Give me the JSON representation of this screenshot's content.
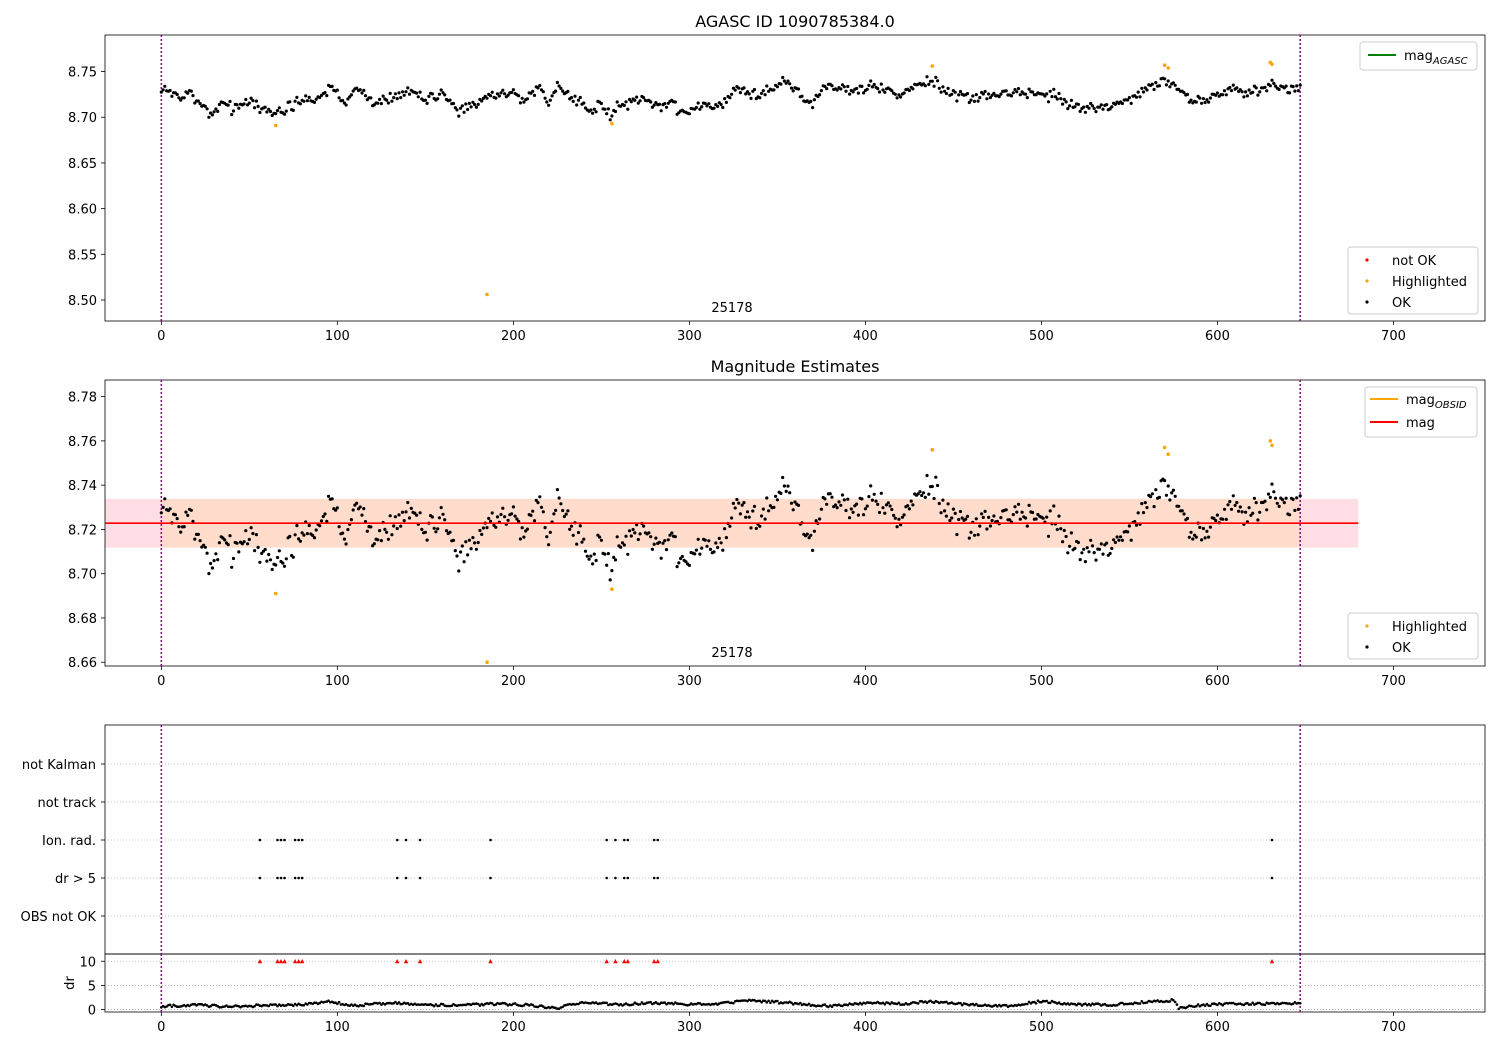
{
  "figure": {
    "panels": {
      "top": {
        "title": "AGASC ID 1090785384.0",
        "obsid_label": "25178"
      },
      "middle": {
        "title": "Magnitude Estimates",
        "obsid_label": "25178"
      },
      "bottom": {
        "title": ""
      }
    }
  },
  "chart_data": [
    {
      "type": "scatter",
      "title": "AGASC ID 1090785384.0",
      "xlabel": "",
      "ylabel": "",
      "xlim": [
        -32,
        752
      ],
      "ylim": [
        8.477,
        8.79
      ],
      "xticks": [
        0,
        100,
        200,
        300,
        400,
        500,
        600,
        700
      ],
      "yticks": [
        8.5,
        8.55,
        8.6,
        8.65,
        8.7,
        8.75
      ],
      "ytick_labels": [
        "8.50",
        "8.55",
        "8.60",
        "8.65",
        "8.70",
        "8.75"
      ],
      "vlines": [
        0,
        647
      ],
      "vline_color": "#8b008b",
      "annotation": {
        "text": "25178",
        "x": 325
      },
      "legend": [
        {
          "label": "mag",
          "sub": "AGASC",
          "kind": "line",
          "color": "#008000",
          "placement": "top-right"
        },
        {
          "label": "not OK",
          "kind": "point",
          "color": "#ff0000",
          "placement": "bottom-right"
        },
        {
          "label": "Highlighted",
          "kind": "point",
          "color": "#ffa500",
          "placement": "bottom-right"
        },
        {
          "label": "OK",
          "kind": "point",
          "color": "#000000",
          "placement": "bottom-right"
        }
      ],
      "series": [
        {
          "name": "OK",
          "color": "#000000",
          "source": "mag_series",
          "step": 1
        },
        {
          "name": "Highlighted",
          "color": "#ffa500",
          "x": [
            65,
            185,
            256,
            438,
            570,
            572,
            630,
            631
          ],
          "y": [
            8.691,
            8.506,
            8.693,
            8.756,
            8.757,
            8.754,
            8.76,
            8.758
          ]
        }
      ]
    },
    {
      "type": "scatter",
      "title": "Magnitude Estimates",
      "xlabel": "",
      "ylabel": "",
      "xlim": [
        -32,
        752
      ],
      "ylim": [
        8.6583,
        8.7875
      ],
      "xticks": [
        0,
        100,
        200,
        300,
        400,
        500,
        600,
        700
      ],
      "yticks": [
        8.66,
        8.68,
        8.7,
        8.72,
        8.74,
        8.76,
        8.78
      ],
      "ytick_labels": [
        "8.66",
        "8.68",
        "8.70",
        "8.72",
        "8.74",
        "8.76",
        "8.78"
      ],
      "vlines": [
        0,
        647
      ],
      "vline_color": "#8b008b",
      "annotation": {
        "text": "25178",
        "x": 325
      },
      "mag_line": {
        "y": 8.7228,
        "x0": -32,
        "x1": 680,
        "color": "#ff0000"
      },
      "bands": [
        {
          "x0": -32,
          "x1": 680,
          "y0": 8.7118,
          "y1": 8.7338,
          "color": "#ffdde4"
        },
        {
          "x0": 0,
          "x1": 647,
          "y0": 8.7118,
          "y1": 8.7338,
          "color": "#ffdccb"
        }
      ],
      "legend": [
        {
          "label": "mag",
          "sub": "OBSID",
          "kind": "line",
          "color": "#ffa500",
          "placement": "top-right"
        },
        {
          "label": "mag",
          "kind": "line",
          "color": "#ff0000",
          "placement": "top-right"
        },
        {
          "label": "Highlighted",
          "kind": "point",
          "color": "#ffa500",
          "placement": "bottom-right"
        },
        {
          "label": "OK",
          "kind": "point",
          "color": "#000000",
          "placement": "bottom-right"
        }
      ],
      "series": [
        {
          "name": "OK",
          "color": "#000000",
          "source": "mag_series",
          "step": 1
        },
        {
          "name": "Highlighted",
          "color": "#ffa500",
          "x": [
            65,
            185,
            256,
            438,
            570,
            572,
            630,
            631
          ],
          "y": [
            8.691,
            8.66,
            8.693,
            8.756,
            8.757,
            8.754,
            8.76,
            8.758
          ]
        }
      ]
    },
    {
      "type": "scatter",
      "title": "",
      "xlabel": "",
      "ylabel": "dr",
      "xlim": [
        -32,
        752
      ],
      "xticks": [
        0,
        100,
        200,
        300,
        400,
        500,
        600,
        700
      ],
      "vlines": [
        0,
        647
      ],
      "vline_color": "#8b008b",
      "flag_rows": [
        "not Kalman",
        "not track",
        "Ion. rad.",
        "dr > 5",
        "OBS not OK"
      ],
      "flag_events": {
        "Ion. rad.": [
          56,
          66,
          68,
          70,
          76,
          78,
          80,
          134,
          139,
          147,
          187,
          253,
          258,
          263,
          265,
          280,
          282,
          631
        ],
        "dr > 5": [
          56,
          66,
          68,
          70,
          76,
          78,
          80,
          134,
          139,
          147,
          187,
          253,
          258,
          263,
          265,
          280,
          282,
          631
        ]
      },
      "dr_ylim": [
        -0.5,
        11.5
      ],
      "dr_yticks": [
        0,
        5,
        10
      ],
      "dr_clip_markers": {
        "y": 10,
        "color": "#ff0000",
        "x": [
          56,
          66,
          68,
          70,
          76,
          78,
          80,
          134,
          139,
          147,
          187,
          253,
          258,
          263,
          265,
          280,
          282,
          631
        ]
      },
      "dr_anchor_x": [
        0,
        20,
        40,
        60,
        80,
        95,
        110,
        130,
        150,
        170,
        190,
        210,
        225,
        240,
        260,
        280,
        300,
        315,
        335,
        360,
        380,
        400,
        420,
        440,
        460,
        480,
        500,
        520,
        540,
        560,
        575,
        578,
        590,
        610,
        630,
        645
      ],
      "dr_anchor_y": [
        0.7,
        0.9,
        0.6,
        0.9,
        1.0,
        1.6,
        0.8,
        1.4,
        1.0,
        0.9,
        1.2,
        0.9,
        0.3,
        1.6,
        1.0,
        1.4,
        1.1,
        1.2,
        1.9,
        1.3,
        0.7,
        1.4,
        1.2,
        1.7,
        1.0,
        0.7,
        1.7,
        1.1,
        1.0,
        1.6,
        1.9,
        0.3,
        0.9,
        1.2,
        1.2,
        1.3
      ]
    }
  ],
  "mag_series": {
    "x_start": 0,
    "x_end": 647,
    "anchor_x": [
      0,
      5,
      10,
      15,
      20,
      25,
      30,
      35,
      40,
      45,
      50,
      55,
      60,
      65,
      70,
      75,
      80,
      85,
      90,
      95,
      100,
      105,
      110,
      115,
      120,
      125,
      130,
      135,
      140,
      145,
      150,
      155,
      160,
      165,
      170,
      175,
      180,
      185,
      190,
      195,
      200,
      205,
      210,
      215,
      220,
      225,
      230,
      235,
      240,
      245,
      250,
      255,
      260,
      265,
      270,
      275,
      280,
      285,
      290,
      295,
      300,
      305,
      310,
      315,
      320,
      325,
      330,
      335,
      340,
      345,
      350,
      355,
      360,
      365,
      370,
      375,
      380,
      385,
      390,
      395,
      400,
      405,
      410,
      415,
      420,
      425,
      430,
      435,
      440,
      445,
      450,
      455,
      460,
      465,
      470,
      475,
      480,
      485,
      490,
      495,
      500,
      505,
      510,
      515,
      520,
      525,
      530,
      535,
      540,
      545,
      550,
      555,
      560,
      565,
      570,
      575,
      580,
      585,
      590,
      595,
      600,
      605,
      610,
      615,
      620,
      625,
      630,
      635,
      640,
      645
    ],
    "anchor_y": [
      8.728,
      8.728,
      8.722,
      8.727,
      8.72,
      8.706,
      8.702,
      8.718,
      8.71,
      8.713,
      8.717,
      8.71,
      8.707,
      8.703,
      8.708,
      8.714,
      8.718,
      8.716,
      8.724,
      8.732,
      8.728,
      8.714,
      8.73,
      8.726,
      8.715,
      8.72,
      8.722,
      8.724,
      8.726,
      8.728,
      8.72,
      8.724,
      8.725,
      8.715,
      8.708,
      8.716,
      8.714,
      8.722,
      8.723,
      8.724,
      8.727,
      8.716,
      8.726,
      8.733,
      8.71,
      8.735,
      8.728,
      8.717,
      8.713,
      8.71,
      8.712,
      8.702,
      8.712,
      8.716,
      8.72,
      8.722,
      8.712,
      8.713,
      8.717,
      8.704,
      8.706,
      8.714,
      8.716,
      8.71,
      8.718,
      8.73,
      8.735,
      8.727,
      8.72,
      8.73,
      8.735,
      8.74,
      8.733,
      8.72,
      8.714,
      8.728,
      8.735,
      8.734,
      8.73,
      8.73,
      8.734,
      8.733,
      8.73,
      8.726,
      8.724,
      8.732,
      8.735,
      8.738,
      8.741,
      8.731,
      8.722,
      8.725,
      8.721,
      8.722,
      8.724,
      8.727,
      8.728,
      8.725,
      8.73,
      8.727,
      8.724,
      8.725,
      8.723,
      8.715,
      8.712,
      8.71,
      8.709,
      8.71,
      8.712,
      8.715,
      8.72,
      8.725,
      8.732,
      8.735,
      8.74,
      8.734,
      8.726,
      8.72,
      8.718,
      8.722,
      8.725,
      8.728,
      8.73,
      8.726,
      8.729,
      8.731,
      8.738,
      8.732,
      8.73,
      8.732
    ],
    "noise_amplitude": 0.006,
    "seed": 25178
  }
}
